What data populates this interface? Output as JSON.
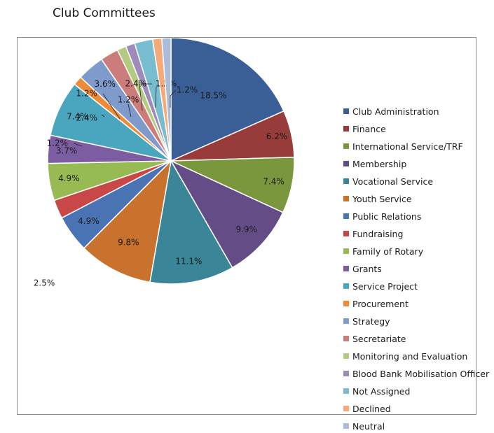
{
  "title": "Club Committees",
  "chart_data": {
    "type": "pie",
    "title": "",
    "legend_position": "right",
    "categories": [
      "Club Administration",
      "Finance",
      "International Service/TRF",
      "Membership",
      "Vocational Service",
      "Youth Service",
      "Public Relations",
      "Fundraising",
      "Family of Rotary",
      "Grants",
      "Service Project",
      "Procurement",
      "Strategy",
      "Secretariate",
      "Monitoring and Evaluation",
      "Blood Bank Mobilisation Officer",
      "Not Assigned",
      "Declined",
      "Neutral"
    ],
    "values": [
      18.5,
      6.2,
      7.4,
      9.9,
      11.1,
      9.8,
      4.9,
      2.5,
      4.9,
      3.7,
      7.4,
      1.2,
      3.6,
      2.4,
      1.2,
      1.2,
      2.4,
      1.2,
      1.2
    ],
    "labels": [
      "18.5%",
      "6.2%",
      "7.4%",
      "9.9%",
      "11.1%",
      "9.8%",
      "4.9%",
      "2.5%",
      "4.9%",
      "3.7%",
      "7.4%",
      "1.2%",
      "3.6%",
      "2.4%",
      "1.2%",
      "1.2%",
      "2.4%",
      "1.2%",
      "1.2%"
    ],
    "colors": [
      "#3A5F96",
      "#973C3A",
      "#7B973E",
      "#644C86",
      "#3A8597",
      "#C8722E",
      "#4A73B3",
      "#C74846",
      "#98BA52",
      "#7C5DA1",
      "#4AA6BE",
      "#EE8B36",
      "#7E9BCB",
      "#CB7D7B",
      "#B3CB80",
      "#9C8BBB",
      "#78BCCF",
      "#F4AA79",
      "#AABCDA"
    ]
  }
}
